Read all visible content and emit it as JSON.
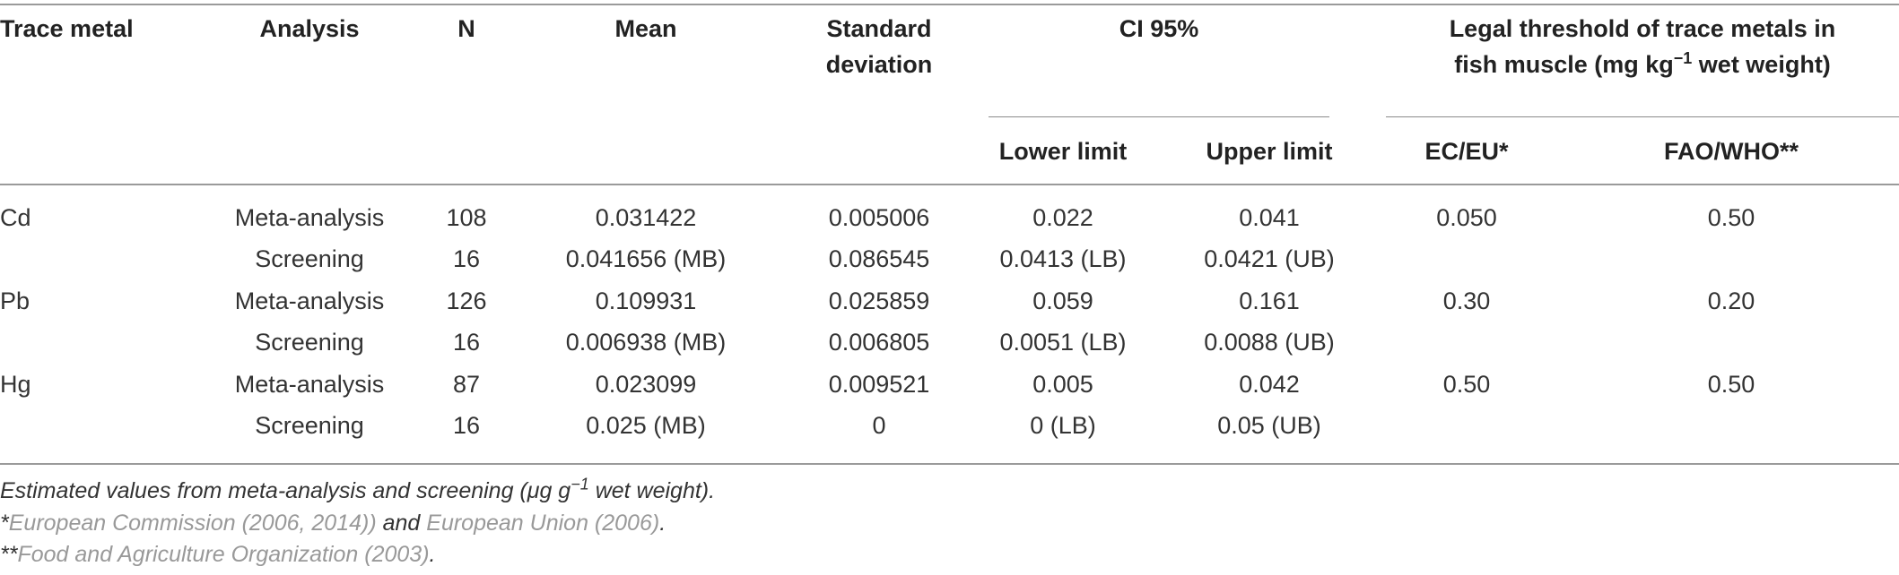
{
  "headers": {
    "trace_metal": "Trace metal",
    "analysis": "Analysis",
    "n": "N",
    "mean": "Mean",
    "sd_line1": "Standard",
    "sd_line2": "deviation",
    "ci": "CI 95%",
    "lower": "Lower limit",
    "upper": "Upper limit",
    "legal_line1": "Legal threshold of trace metals in",
    "legal_line2_pre": "fish muscle (mg kg",
    "legal_line2_sup": "−1",
    "legal_line2_post": " wet weight)",
    "ec_eu": "EC/EU*",
    "fao_who": "FAO/WHO**"
  },
  "rows": [
    {
      "metal": "Cd",
      "analysis": "Meta-analysis",
      "n": "108",
      "mean": "0.031422",
      "sd": "0.005006",
      "lower": "0.022",
      "upper": "0.041",
      "ec": "0.050",
      "fao": "0.50"
    },
    {
      "metal": "",
      "analysis": "Screening",
      "n": "16",
      "mean": "0.041656 (MB)",
      "sd": "0.086545",
      "lower": "0.0413 (LB)",
      "upper": "0.0421 (UB)",
      "ec": "",
      "fao": ""
    },
    {
      "metal": "Pb",
      "analysis": "Meta-analysis",
      "n": "126",
      "mean": "0.109931",
      "sd": "0.025859",
      "lower": "0.059",
      "upper": "0.161",
      "ec": "0.30",
      "fao": "0.20"
    },
    {
      "metal": "",
      "analysis": "Screening",
      "n": "16",
      "mean": "0.006938 (MB)",
      "sd": "0.006805",
      "lower": "0.0051 (LB)",
      "upper": "0.0088 (UB)",
      "ec": "",
      "fao": ""
    },
    {
      "metal": "Hg",
      "analysis": "Meta-analysis",
      "n": "87",
      "mean": "0.023099",
      "sd": "0.009521",
      "lower": "0.005",
      "upper": "0.042",
      "ec": "0.50",
      "fao": "0.50"
    },
    {
      "metal": "",
      "analysis": "Screening",
      "n": "16",
      "mean": "0.025 (MB)",
      "sd": "0",
      "lower": "0 (LB)",
      "upper": "0.05 (UB)",
      "ec": "",
      "fao": ""
    }
  ],
  "footnotes": {
    "note1_pre": "Estimated values from meta-analysis and screening (μg g",
    "note1_sup": "−1",
    "note1_post": " wet weight).",
    "note2_star": "*",
    "note2_ref1": "European Commission (2006, 2014))",
    "note2_and": " and ",
    "note2_ref2": "European Union (2006)",
    "note2_end": ".",
    "note3_star": "**",
    "note3_ref": "Food and Agriculture Organization (2003)",
    "note3_end": "."
  }
}
